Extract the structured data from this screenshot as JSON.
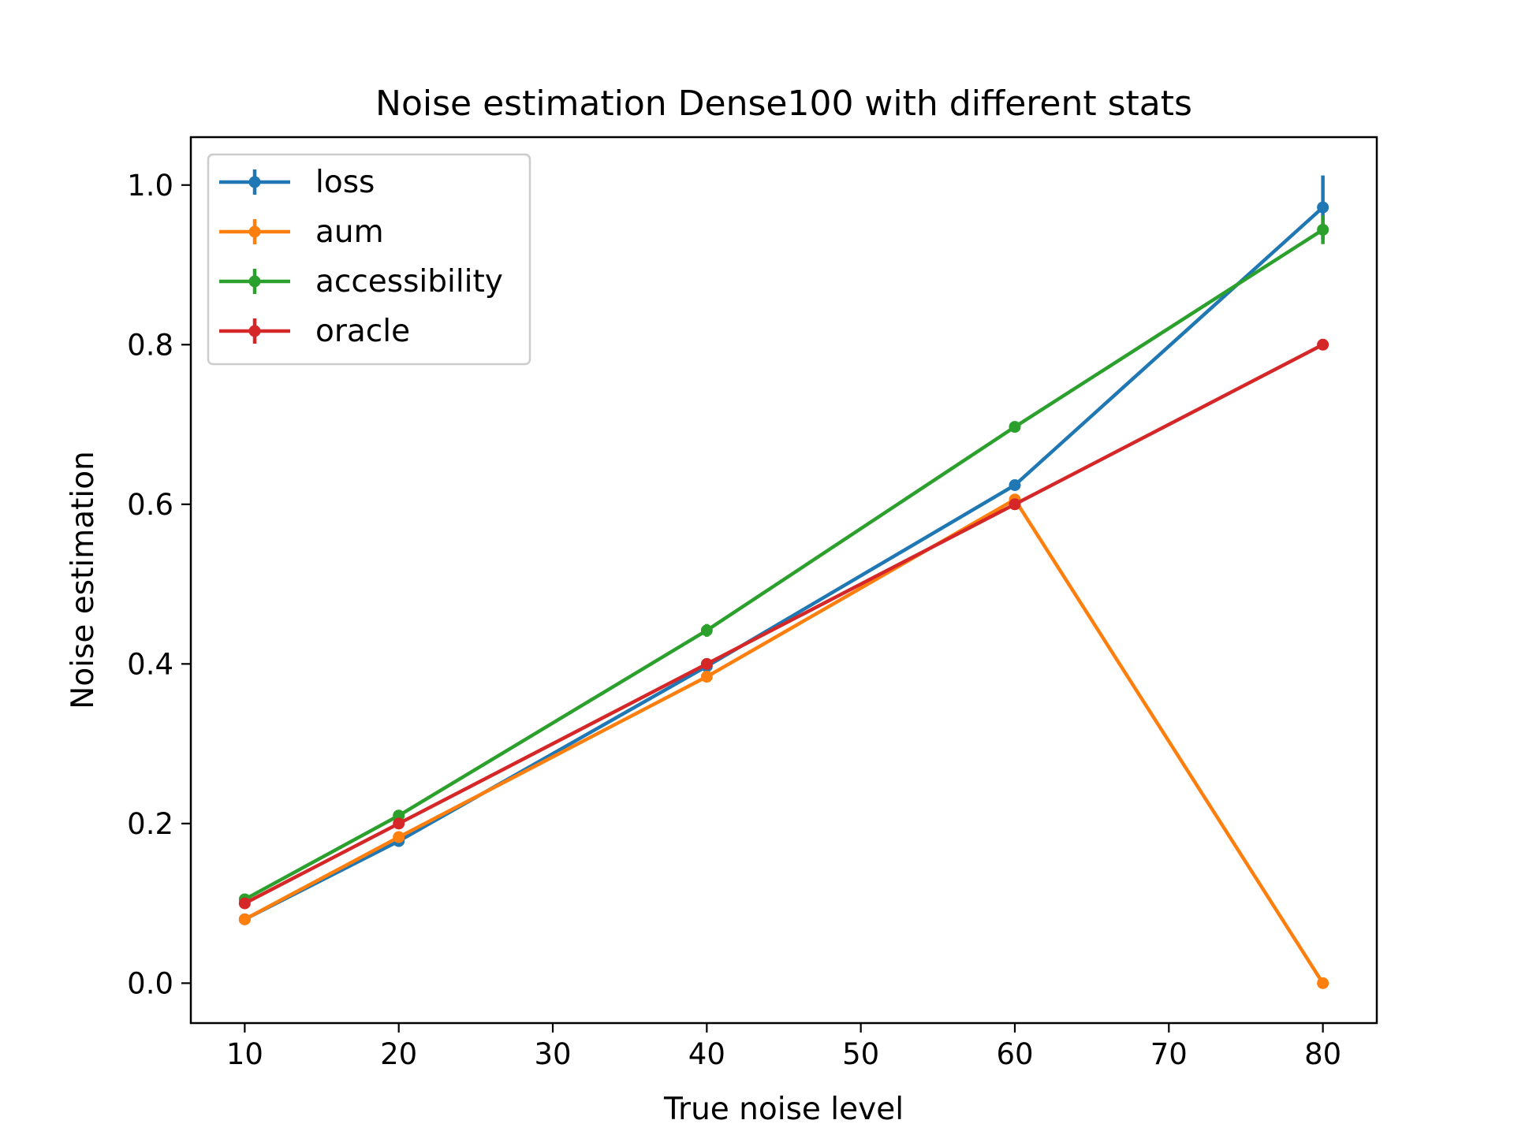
{
  "chart_data": {
    "type": "line",
    "title": "Noise estimation Dense100 with different stats",
    "xlabel": "True noise level",
    "ylabel": "Noise estimation",
    "x": [
      10,
      20,
      40,
      60,
      80
    ],
    "xlim": [
      6.5,
      83.5
    ],
    "ylim": [
      -0.05,
      1.06
    ],
    "xticks": [
      10,
      20,
      30,
      40,
      50,
      60,
      70,
      80
    ],
    "yticks": [
      0.0,
      0.2,
      0.4,
      0.6,
      0.8,
      1.0
    ],
    "xtick_labels": [
      "10",
      "20",
      "30",
      "40",
      "50",
      "60",
      "70",
      "80"
    ],
    "ytick_labels": [
      "0.0",
      "0.2",
      "0.4",
      "0.6",
      "0.8",
      "1.0"
    ],
    "grid": false,
    "legend_position": "top-left",
    "error_bars": true,
    "series": [
      {
        "name": "loss",
        "color": "#1f77b4",
        "values": [
          0.08,
          0.178,
          0.397,
          0.624,
          0.972
        ],
        "errors": [
          0.0,
          0.003,
          0.003,
          0.004,
          0.04
        ]
      },
      {
        "name": "aum",
        "color": "#ff7f0e",
        "values": [
          0.08,
          0.183,
          0.384,
          0.606,
          0.0
        ],
        "errors": [
          0.0,
          0.004,
          0.006,
          0.004,
          0.0
        ]
      },
      {
        "name": "accessibility",
        "color": "#2ca02c",
        "values": [
          0.105,
          0.21,
          0.442,
          0.697,
          0.944
        ],
        "errors": [
          0.002,
          0.003,
          0.008,
          0.003,
          0.018
        ]
      },
      {
        "name": "oracle",
        "color": "#d62728",
        "values": [
          0.1,
          0.2,
          0.4,
          0.6,
          0.8
        ],
        "errors": [
          0.0,
          0.0,
          0.0,
          0.0,
          0.0
        ]
      }
    ]
  }
}
